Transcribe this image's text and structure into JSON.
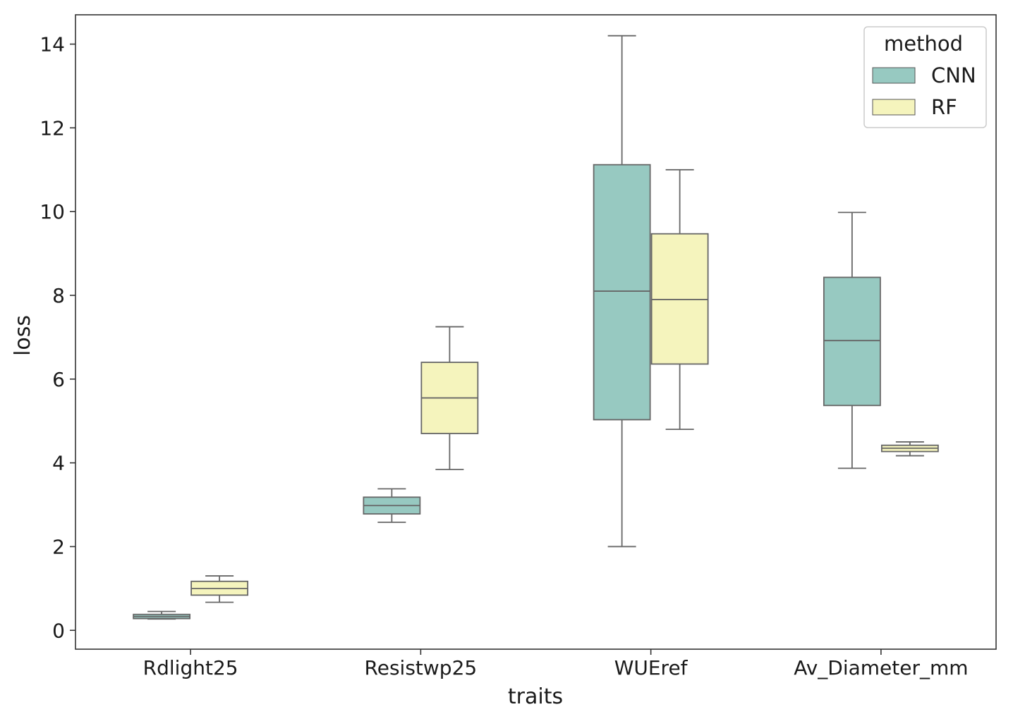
{
  "chart_data": {
    "type": "box",
    "xlabel": "traits",
    "ylabel": "loss",
    "categories": [
      "Rdlight25",
      "Resistwp25",
      "WUEref",
      "Av_Diameter_mm"
    ],
    "ylim": [
      -0.45,
      14.7
    ],
    "yticks": [
      0,
      2,
      4,
      6,
      8,
      10,
      12,
      14
    ],
    "ytick_labels": [
      "0",
      "2",
      "4",
      "6",
      "8",
      "10",
      "12",
      "14"
    ],
    "grid": false,
    "legend": {
      "title": "method",
      "placement": "top-right"
    },
    "series": [
      {
        "name": "CNN",
        "color": "#97c9c1",
        "boxes": [
          {
            "category": "Rdlight25",
            "whislo": 0.27,
            "q1": 0.28,
            "med": 0.33,
            "q3": 0.38,
            "whishi": 0.45
          },
          {
            "category": "Resistwp25",
            "whislo": 2.58,
            "q1": 2.78,
            "med": 2.98,
            "q3": 3.18,
            "whishi": 3.38
          },
          {
            "category": "WUEref",
            "whislo": 2.0,
            "q1": 5.03,
            "med": 8.1,
            "q3": 11.12,
            "whishi": 14.2
          },
          {
            "category": "Av_Diameter_mm",
            "whislo": 3.87,
            "q1": 5.37,
            "med": 6.92,
            "q3": 8.43,
            "whishi": 9.98
          }
        ]
      },
      {
        "name": "RF",
        "color": "#f5f4bd",
        "boxes": [
          {
            "category": "Rdlight25",
            "whislo": 0.67,
            "q1": 0.84,
            "med": 1.0,
            "q3": 1.17,
            "whishi": 1.3
          },
          {
            "category": "Resistwp25",
            "whislo": 3.84,
            "q1": 4.7,
            "med": 5.55,
            "q3": 6.4,
            "whishi": 7.25
          },
          {
            "category": "WUEref",
            "whislo": 4.8,
            "q1": 6.36,
            "med": 7.9,
            "q3": 9.47,
            "whishi": 11.0
          },
          {
            "category": "Av_Diameter_mm",
            "whislo": 4.17,
            "q1": 4.27,
            "med": 4.35,
            "q3": 4.42,
            "whishi": 4.5
          }
        ]
      }
    ]
  }
}
